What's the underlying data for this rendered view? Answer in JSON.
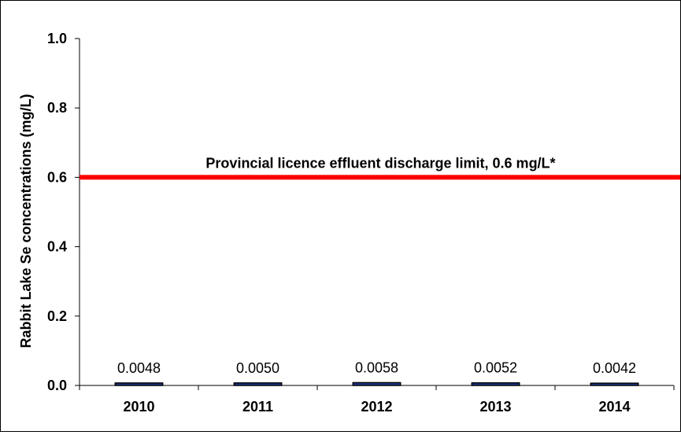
{
  "chart_data": {
    "type": "bar",
    "ylabel": "Rabbit Lake Se concentrations (mg/L)",
    "xlabel": "",
    "categories": [
      "2010",
      "2011",
      "2012",
      "2013",
      "2014"
    ],
    "series": [
      {
        "values": [
          0.0048,
          0.005,
          0.0058,
          0.0052,
          0.0042
        ],
        "labels": [
          "0.0048",
          "0.0050",
          "0.0058",
          "0.0052",
          "0.0042"
        ]
      }
    ],
    "ylim": [
      0,
      1.0
    ],
    "yticks": [
      0.0,
      0.2,
      0.4,
      0.6,
      0.8,
      1.0
    ],
    "ytick_labels": [
      "0.0",
      "0.2",
      "0.4",
      "0.6",
      "0.8",
      "1.0"
    ],
    "reference_line": {
      "value": 0.6,
      "label": "Provincial licence effluent discharge limit, 0.6 mg/L*",
      "color": "#ff0000"
    },
    "bar_color": "#1f3a93",
    "grid": false,
    "legend": "none"
  }
}
